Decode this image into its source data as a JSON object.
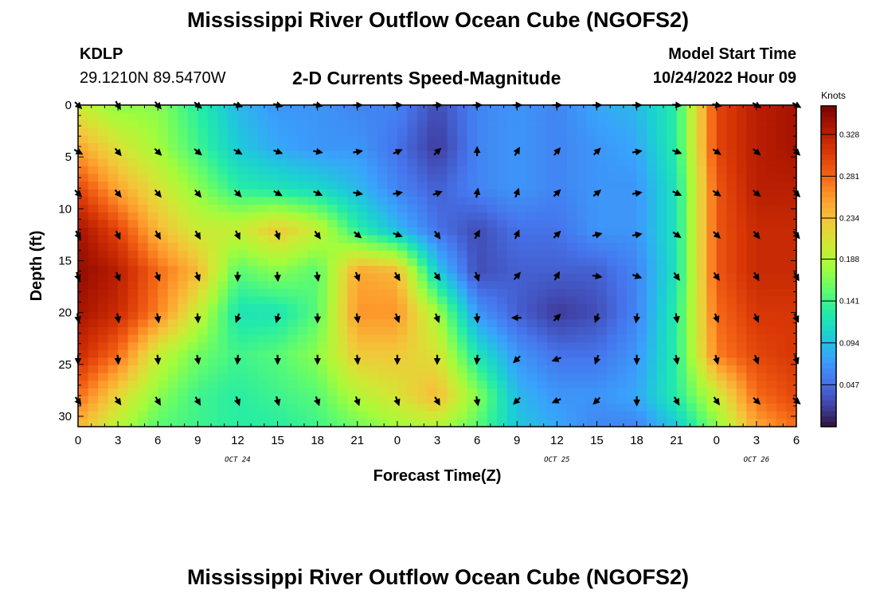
{
  "page": {
    "title": "Mississippi River Outflow Ocean Cube (NGOFS2)",
    "station_id": "KDLP",
    "station_coords": "29.1210N  89.5470W",
    "subtitle": "2-D Currents Speed-Magnitude",
    "model_start_label": "Model Start Time",
    "model_start_value": "10/24/2022 Hour 09",
    "second_title": "Mississippi River Outflow Ocean Cube (NGOFS2)"
  },
  "colors": {
    "colormap": [
      "#30123b",
      "#4145ab",
      "#4675ed",
      "#39a2fc",
      "#1bcfd4",
      "#24eca6",
      "#61fc6c",
      "#a4fc3b",
      "#d1e834",
      "#f3c63a",
      "#fe9b2d",
      "#f36315",
      "#d93806",
      "#b11901",
      "#7a0402"
    ],
    "arrow": "#000000",
    "frame": "#000000"
  },
  "chart_data": {
    "type": "heatmap",
    "title": "2-D Currents Speed-Magnitude",
    "xlabel": "Forecast Time(Z)",
    "ylabel": "Depth (ft)",
    "x_range_hours": [
      0,
      54
    ],
    "x_tick_hours": [
      0,
      3,
      6,
      9,
      12,
      15,
      18,
      21,
      24,
      27,
      30,
      33,
      36,
      39,
      42,
      45,
      48,
      51,
      54
    ],
    "x_tick_labels": [
      "0",
      "3",
      "6",
      "9",
      "12",
      "15",
      "18",
      "21",
      "0",
      "3",
      "6",
      "9",
      "12",
      "15",
      "18",
      "21",
      "0",
      "3",
      "6"
    ],
    "date_labels": [
      {
        "text": "OCT 24",
        "hour": 12
      },
      {
        "text": "OCT 25",
        "hour": 36
      },
      {
        "text": "OCT 26",
        "hour": 51
      }
    ],
    "ylim": [
      31,
      0
    ],
    "y_ticks": [
      0,
      5,
      10,
      15,
      20,
      25,
      30
    ],
    "y_tick_labels": [
      "0",
      "5",
      "10",
      "15",
      "20",
      "25",
      "30"
    ],
    "colorbar": {
      "label": "Knots",
      "range": [
        0.0,
        0.36
      ],
      "ticks": [
        0.047,
        0.094,
        0.141,
        0.188,
        0.234,
        0.281,
        0.328
      ],
      "tick_labels": [
        "0.047",
        "0.094",
        "0.141",
        "0.188",
        "0.234",
        "0.281",
        "0.328"
      ]
    },
    "speed_grid": {
      "times": [
        0,
        3,
        6,
        9,
        12,
        15,
        18,
        21,
        24,
        27,
        30,
        33,
        36,
        39,
        42,
        45,
        48,
        51,
        54
      ],
      "depths": [
        0,
        4,
        8,
        12,
        16,
        20,
        24,
        28,
        31
      ],
      "values": [
        [
          0.2,
          0.17,
          0.17,
          0.13,
          0.09,
          0.07,
          0.07,
          0.06,
          0.06,
          0.03,
          0.06,
          0.07,
          0.06,
          0.08,
          0.09,
          0.13,
          0.3,
          0.33,
          0.34
        ],
        [
          0.25,
          0.21,
          0.18,
          0.14,
          0.1,
          0.08,
          0.07,
          0.07,
          0.05,
          0.02,
          0.06,
          0.07,
          0.06,
          0.07,
          0.08,
          0.13,
          0.3,
          0.33,
          0.34
        ],
        [
          0.3,
          0.25,
          0.21,
          0.17,
          0.13,
          0.12,
          0.11,
          0.09,
          0.06,
          0.04,
          0.06,
          0.07,
          0.06,
          0.07,
          0.07,
          0.12,
          0.29,
          0.33,
          0.33
        ],
        [
          0.34,
          0.3,
          0.24,
          0.2,
          0.2,
          0.23,
          0.2,
          0.13,
          0.09,
          0.05,
          0.03,
          0.05,
          0.05,
          0.07,
          0.07,
          0.12,
          0.29,
          0.32,
          0.32
        ],
        [
          0.35,
          0.33,
          0.28,
          0.24,
          0.15,
          0.17,
          0.15,
          0.25,
          0.24,
          0.1,
          0.03,
          0.04,
          0.04,
          0.04,
          0.06,
          0.12,
          0.29,
          0.32,
          0.32
        ],
        [
          0.34,
          0.32,
          0.27,
          0.2,
          0.12,
          0.12,
          0.15,
          0.26,
          0.26,
          0.18,
          0.07,
          0.04,
          0.02,
          0.03,
          0.06,
          0.13,
          0.28,
          0.31,
          0.31
        ],
        [
          0.32,
          0.28,
          0.2,
          0.16,
          0.14,
          0.15,
          0.17,
          0.23,
          0.23,
          0.21,
          0.12,
          0.07,
          0.05,
          0.05,
          0.07,
          0.13,
          0.27,
          0.3,
          0.31
        ],
        [
          0.28,
          0.22,
          0.17,
          0.14,
          0.13,
          0.14,
          0.15,
          0.19,
          0.21,
          0.24,
          0.17,
          0.09,
          0.07,
          0.07,
          0.08,
          0.13,
          0.2,
          0.28,
          0.3
        ],
        [
          0.24,
          0.19,
          0.15,
          0.14,
          0.13,
          0.13,
          0.14,
          0.16,
          0.18,
          0.19,
          0.15,
          0.1,
          0.08,
          0.06,
          0.06,
          0.1,
          0.17,
          0.25,
          0.28
        ]
      ]
    },
    "vectors": {
      "times": [
        0,
        3,
        6,
        9,
        12,
        15,
        18,
        21,
        24,
        27,
        30,
        33,
        36,
        39,
        42,
        45,
        48,
        51,
        54
      ],
      "depths": [
        0,
        4.5,
        8.5,
        12.5,
        16.5,
        20.5,
        24.5,
        28.5
      ],
      "bearing_deg": [
        [
          135,
          150,
          140,
          130,
          110,
          105,
          100,
          90,
          90,
          90,
          90,
          90,
          90,
          90,
          90,
          95,
          100,
          120,
          120
        ],
        [
          120,
          140,
          135,
          130,
          120,
          110,
          100,
          80,
          65,
          45,
          0,
          30,
          40,
          45,
          80,
          110,
          125,
          130,
          135
        ],
        [
          135,
          140,
          140,
          140,
          135,
          120,
          115,
          100,
          80,
          70,
          10,
          20,
          45,
          50,
          80,
          115,
          125,
          130,
          135
        ],
        [
          150,
          155,
          150,
          150,
          155,
          160,
          145,
          130,
          110,
          145,
          30,
          25,
          45,
          75,
          80,
          125,
          135,
          140,
          140
        ],
        [
          160,
          160,
          160,
          160,
          180,
          175,
          170,
          160,
          150,
          145,
          160,
          40,
          30,
          100,
          110,
          145,
          145,
          150,
          150
        ],
        [
          170,
          170,
          170,
          175,
          200,
          195,
          180,
          170,
          160,
          160,
          175,
          270,
          45,
          200,
          190,
          170,
          160,
          155,
          155
        ],
        [
          180,
          175,
          175,
          170,
          185,
          180,
          180,
          175,
          180,
          180,
          185,
          225,
          250,
          200,
          180,
          170,
          165,
          160,
          160
        ],
        [
          145,
          145,
          150,
          150,
          160,
          165,
          160,
          160,
          160,
          150,
          170,
          225,
          245,
          225,
          180,
          150,
          145,
          135,
          130
        ]
      ]
    }
  }
}
